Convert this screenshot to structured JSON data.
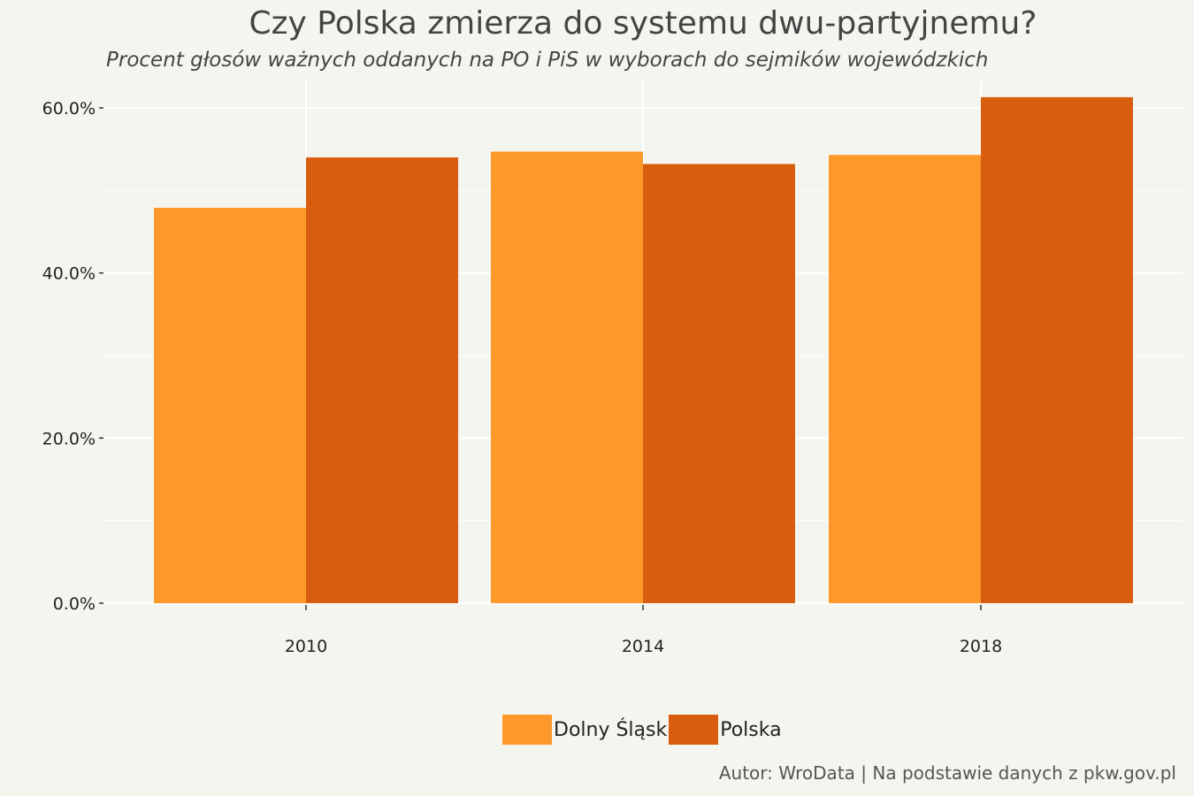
{
  "title": "Czy Polska zmierza do systemu dwu-partyjnemu?",
  "subtitle": "Procent głosów ważnych oddanych na PO i PiS w wyborach do sejmików wojewódzkich",
  "caption": "Autor: WroData | Na podstawie danych z pkw.gov.pl",
  "colors": {
    "background": "#f5f5f0",
    "dolny_slask": "#fd982a",
    "polska": "#d95d0f",
    "grid": "#ffffff"
  },
  "chart_data": {
    "type": "bar",
    "categories": [
      "2010",
      "2014",
      "2018"
    ],
    "series": [
      {
        "name": "Dolny Śląsk",
        "values": [
          47.9,
          54.7,
          54.3
        ]
      },
      {
        "name": "Polska",
        "values": [
          54.0,
          53.2,
          61.3
        ]
      }
    ],
    "ylim": [
      0,
      60
    ],
    "yticks": [
      "0.0%",
      "20.0%",
      "40.0%",
      "60.0%"
    ],
    "ytick_values": [
      0,
      20,
      40,
      60
    ],
    "legend": "bottom",
    "grid": true
  }
}
